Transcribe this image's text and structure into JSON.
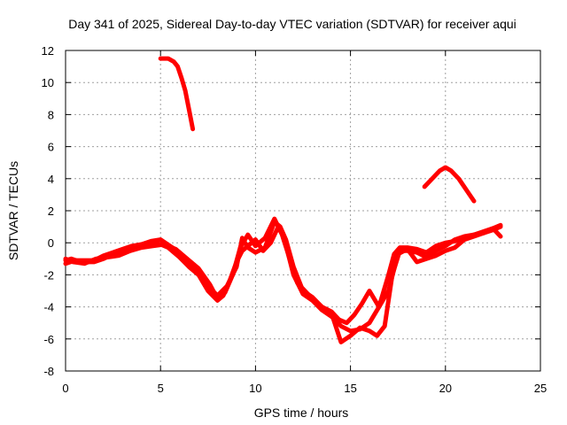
{
  "chart_data": {
    "type": "line",
    "title": "Day 341 of 2025, Sidereal Day-to-day VTEC variation (SDTVAR) for receiver aqui",
    "xlabel": "GPS time / hours",
    "ylabel": "SDTVAR / TECUs",
    "xlim": [
      0,
      25
    ],
    "ylim": [
      -8,
      12
    ],
    "xticks": [
      0,
      5,
      10,
      15,
      20,
      25
    ],
    "yticks": [
      -8,
      -6,
      -4,
      -2,
      0,
      2,
      4,
      6,
      8,
      10,
      12
    ],
    "xtick_labels": [
      "0",
      "5",
      "10",
      "15",
      "20",
      "25"
    ],
    "ytick_labels": [
      "-8",
      "-6",
      "-4",
      "-2",
      "0",
      "2",
      "4",
      "6",
      "8",
      "10",
      "12"
    ],
    "grid": true,
    "color": "#ff0000",
    "series": [
      {
        "name": "arc-main-a",
        "x": [
          0.0,
          0.3,
          0.8,
          1.5,
          2.0,
          2.5,
          3.0,
          3.5,
          4.0,
          4.5,
          5.0,
          5.4,
          6.0,
          6.5,
          7.0,
          7.5,
          8.0,
          8.3,
          8.6,
          9.0,
          9.3,
          9.6,
          10.0,
          10.4,
          10.8,
          11.2,
          11.5,
          12.0,
          12.5,
          13.0,
          13.5,
          14.0,
          14.5,
          15.0,
          15.5,
          16.0,
          16.5,
          17.0,
          17.3,
          17.6,
          18.0,
          18.5,
          19.0,
          19.5,
          20.0,
          20.5,
          21.0,
          21.5,
          22.0,
          22.5,
          22.9
        ],
        "y": [
          -1.1,
          -1.0,
          -1.2,
          -1.2,
          -1.0,
          -0.7,
          -0.5,
          -0.3,
          -0.1,
          0.0,
          -0.1,
          -0.3,
          -0.9,
          -1.5,
          -2.0,
          -3.0,
          -3.6,
          -3.3,
          -2.5,
          -1.2,
          -0.5,
          -0.2,
          0.2,
          -0.5,
          0.0,
          1.0,
          0.3,
          -2.0,
          -3.2,
          -3.6,
          -4.2,
          -4.6,
          -5.2,
          -5.5,
          -5.4,
          -5.0,
          -4.0,
          -2.0,
          -0.7,
          -0.3,
          -0.3,
          -0.4,
          -0.6,
          -0.2,
          0.0,
          0.1,
          0.3,
          0.5,
          0.6,
          0.8,
          1.0
        ]
      },
      {
        "name": "arc-main-b",
        "x": [
          0.0,
          0.5,
          1.0,
          1.5,
          2.0,
          2.5,
          3.0,
          3.5,
          4.0,
          4.5,
          5.0,
          5.5,
          6.0,
          6.5,
          7.0,
          7.5,
          8.0,
          8.5,
          9.0,
          9.3,
          9.6,
          10.0,
          10.5,
          11.0,
          11.3,
          11.6,
          12.0,
          12.5,
          13.0,
          13.5,
          14.0,
          14.5,
          15.0,
          15.5,
          16.0,
          16.4,
          16.8,
          17.2,
          17.6,
          18.0,
          18.5,
          19.0,
          19.5,
          20.0,
          20.5,
          21.0,
          21.5,
          22.0,
          22.5,
          22.9
        ],
        "y": [
          -1.3,
          -1.1,
          -1.1,
          -1.1,
          -0.8,
          -0.6,
          -0.4,
          -0.2,
          -0.1,
          0.1,
          0.2,
          -0.2,
          -0.6,
          -1.2,
          -1.8,
          -2.7,
          -3.3,
          -2.7,
          -1.5,
          0.3,
          -0.3,
          -0.6,
          -0.3,
          1.3,
          1.0,
          0.2,
          -1.5,
          -3.0,
          -3.4,
          -4.0,
          -4.4,
          -6.2,
          -5.8,
          -5.3,
          -5.5,
          -5.8,
          -5.2,
          -2.0,
          -0.5,
          -0.5,
          -0.6,
          -0.9,
          -0.5,
          -0.2,
          0.2,
          0.4,
          0.5,
          0.7,
          0.9,
          1.1
        ]
      },
      {
        "name": "arc-main-c",
        "x": [
          0.0,
          0.4,
          1.0,
          1.6,
          2.2,
          2.8,
          3.4,
          4.0,
          4.6,
          5.2,
          5.8,
          6.4,
          7.0,
          7.6,
          8.0,
          8.4,
          8.8,
          9.2,
          9.6,
          10.0,
          10.5,
          11.0,
          11.4,
          11.8,
          12.2,
          12.6,
          13.0,
          13.5,
          14.0,
          14.4,
          14.8,
          15.2,
          15.6,
          16.0,
          16.5,
          17.0,
          17.5,
          18.0,
          18.5,
          19.0,
          19.5,
          20.0,
          20.5,
          21.0,
          21.5,
          22.0,
          22.5,
          22.9
        ],
        "y": [
          -1.0,
          -1.2,
          -1.3,
          -1.0,
          -0.9,
          -0.8,
          -0.5,
          -0.3,
          -0.2,
          -0.1,
          -0.4,
          -1.0,
          -1.6,
          -2.6,
          -3.5,
          -3.1,
          -2.0,
          -0.3,
          0.5,
          -0.2,
          0.3,
          1.5,
          0.5,
          -1.0,
          -2.5,
          -3.0,
          -3.5,
          -4.0,
          -4.3,
          -4.8,
          -5.0,
          -4.5,
          -3.8,
          -3.0,
          -4.0,
          -3.0,
          -0.7,
          -0.4,
          -1.2,
          -1.0,
          -0.8,
          -0.5,
          -0.3,
          0.2,
          0.4,
          0.6,
          0.9,
          0.4
        ]
      },
      {
        "name": "arc-morning-peak",
        "x": [
          5.0,
          5.4,
          5.7,
          5.9,
          6.1,
          6.3,
          6.5,
          6.7
        ],
        "y": [
          11.5,
          11.5,
          11.3,
          11.0,
          10.3,
          9.5,
          8.3,
          7.1
        ]
      },
      {
        "name": "arc-evening-peak",
        "x": [
          18.9,
          19.3,
          19.7,
          20.0,
          20.3,
          20.7,
          21.1,
          21.5
        ],
        "y": [
          3.5,
          4.0,
          4.5,
          4.7,
          4.5,
          4.0,
          3.3,
          2.6
        ]
      }
    ]
  }
}
